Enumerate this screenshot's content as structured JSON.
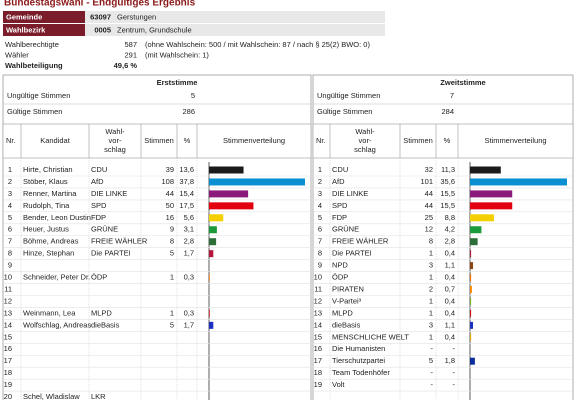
{
  "title": "Bundestagswahl - Endgültiges Ergebnis",
  "header": {
    "rows": [
      {
        "label": "Gemeinde",
        "code": "63097",
        "name": "Gerstungen"
      },
      {
        "label": "Wahlbezirk",
        "code": "0005",
        "name": "Zentrum, Grundschule"
      }
    ]
  },
  "summary": [
    {
      "label": "Wahlberechtigte",
      "value": "587",
      "note": "(ohne Wahlschein: 500 / mit Wahlschein: 87 / nach § 25(2) BWO: 0)"
    },
    {
      "label": "Wähler",
      "value": "291",
      "note": "(mit Wahlschein: 1)"
    },
    {
      "label": "Wahlbeteiligung",
      "value": "49,6 %"
    }
  ],
  "panels": [
    {
      "title": "Erststimme",
      "invalid_label": "Ungültige Stimmen",
      "invalid": "5",
      "valid_label": "Gültige Stimmen",
      "valid": "286",
      "columns": [
        [
          "Nr."
        ],
        [
          "Kandidat"
        ],
        [
          "Wahl-",
          "vor-",
          "schlag"
        ],
        [
          "Stimmen"
        ],
        [
          "%"
        ],
        [
          "Stimmenverteilung"
        ]
      ],
      "rows": [
        {
          "nr": 1,
          "name": "Hirte, Christian",
          "party": "CDU",
          "votes": 39,
          "pct": 13.6,
          "pct_label": "13,6",
          "color": "#1a1a1a"
        },
        {
          "nr": 2,
          "name": "Stöber, Klaus",
          "party": "AfD",
          "votes": 108,
          "pct": 37.8,
          "pct_label": "37,8",
          "color": "#0a8fd0"
        },
        {
          "nr": 3,
          "name": "Renner, Martina",
          "party": "DIE LINKE",
          "votes": 44,
          "pct": 15.4,
          "pct_label": "15,4",
          "color": "#8b1a7a"
        },
        {
          "nr": 4,
          "name": "Rudolph, Tina",
          "party": "SPD",
          "votes": 50,
          "pct": 17.5,
          "pct_label": "17,5",
          "color": "#e3000f"
        },
        {
          "nr": 5,
          "name": "Bender, Leon Dustin",
          "party": "FDP",
          "votes": 16,
          "pct": 5.6,
          "pct_label": "5,6",
          "color": "#f5d000"
        },
        {
          "nr": 6,
          "name": "Heuer, Justus",
          "party": "GRÜNE",
          "votes": 9,
          "pct": 3.1,
          "pct_label": "3,1",
          "color": "#1a9a3a"
        },
        {
          "nr": 7,
          "name": "Böhme, Andreas",
          "party": "FREIE WÄHLER",
          "votes": 8,
          "pct": 2.8,
          "pct_label": "2,8",
          "color": "#2d6e3a"
        },
        {
          "nr": 8,
          "name": "Hinze, Stephan",
          "party": "Die PARTEI",
          "votes": 5,
          "pct": 1.7,
          "pct_label": "1,7",
          "color": "#b5153a"
        },
        {
          "nr": 9
        },
        {
          "nr": 10,
          "name": "Schneider, Peter Dr.",
          "party": "ÖDP",
          "votes": 1,
          "pct": 0.3,
          "pct_label": "0,3",
          "color": "#f07000"
        },
        {
          "nr": 11
        },
        {
          "nr": 12
        },
        {
          "nr": 13,
          "name": "Weinmann, Lea",
          "party": "MLPD",
          "votes": 1,
          "pct": 0.3,
          "pct_label": "0,3",
          "color": "#d01010"
        },
        {
          "nr": 14,
          "name": "Wolfschlag, Andreas",
          "party": "dieBasis",
          "votes": 5,
          "pct": 1.7,
          "pct_label": "1,7",
          "color": "#1b30c0"
        },
        {
          "nr": 15
        },
        {
          "nr": 16
        },
        {
          "nr": 17
        },
        {
          "nr": 18
        },
        {
          "nr": 19
        },
        {
          "nr": 20,
          "name": "Schel, Wladislaw",
          "party": "LKR"
        }
      ]
    },
    {
      "title": "Zweitstimme",
      "invalid_label": "Ungültige Stimmen",
      "invalid": "7",
      "valid_label": "Gültige Stimmen",
      "valid": "284",
      "columns": [
        [
          "Nr."
        ],
        [
          "Wahl-",
          "vor-",
          "schlag"
        ],
        [
          "Stimmen"
        ],
        [
          "%"
        ],
        [
          "Stimmenverteilung"
        ]
      ],
      "rows": [
        {
          "nr": 1,
          "party": "CDU",
          "votes": 32,
          "pct": 11.3,
          "pct_label": "11,3",
          "color": "#1a1a1a"
        },
        {
          "nr": 2,
          "party": "AfD",
          "votes": 101,
          "pct": 35.6,
          "pct_label": "35,6",
          "color": "#0a8fd0"
        },
        {
          "nr": 3,
          "party": "DIE LINKE",
          "votes": 44,
          "pct": 15.5,
          "pct_label": "15,5",
          "color": "#8b1a7a"
        },
        {
          "nr": 4,
          "party": "SPD",
          "votes": 44,
          "pct": 15.5,
          "pct_label": "15,5",
          "color": "#e3000f"
        },
        {
          "nr": 5,
          "party": "FDP",
          "votes": 25,
          "pct": 8.8,
          "pct_label": "8,8",
          "color": "#f5d000"
        },
        {
          "nr": 6,
          "party": "GRÜNE",
          "votes": 12,
          "pct": 4.2,
          "pct_label": "4,2",
          "color": "#1a9a3a"
        },
        {
          "nr": 7,
          "party": "FREIE WÄHLER",
          "votes": 8,
          "pct": 2.8,
          "pct_label": "2,8",
          "color": "#2d6e3a"
        },
        {
          "nr": 8,
          "party": "Die PARTEI",
          "votes": 1,
          "pct": 0.4,
          "pct_label": "0,4",
          "color": "#b5153a"
        },
        {
          "nr": 9,
          "party": "NPD",
          "votes": 3,
          "pct": 1.1,
          "pct_label": "1,1",
          "color": "#8b4513"
        },
        {
          "nr": 10,
          "party": "ÖDP",
          "votes": 1,
          "pct": 0.4,
          "pct_label": "0,4",
          "color": "#f07000"
        },
        {
          "nr": 11,
          "party": "PIRATEN",
          "votes": 2,
          "pct": 0.7,
          "pct_label": "0,7",
          "color": "#ff8800"
        },
        {
          "nr": 12,
          "party": "V-Partei³",
          "votes": 1,
          "pct": 0.4,
          "pct_label": "0,4",
          "color": "#7ab51d"
        },
        {
          "nr": 13,
          "party": "MLPD",
          "votes": 1,
          "pct": 0.4,
          "pct_label": "0,4",
          "color": "#d01010"
        },
        {
          "nr": 14,
          "party": "dieBasis",
          "votes": 3,
          "pct": 1.1,
          "pct_label": "1,1",
          "color": "#1b30c0"
        },
        {
          "nr": 15,
          "party": "MENSCHLICHE WELT",
          "votes": 1,
          "pct": 0.4,
          "pct_label": "0,4",
          "color": "#e0a000"
        },
        {
          "nr": 16,
          "party": "Die Humanisten",
          "votes": "-",
          "pct_label": "-"
        },
        {
          "nr": 17,
          "party": "Tierschutzpartei",
          "votes": 5,
          "pct": 1.8,
          "pct_label": "1,8",
          "color": "#0b2e9c"
        },
        {
          "nr": 18,
          "party": "Team Todenhöfer",
          "votes": "-",
          "pct_label": "-"
        },
        {
          "nr": 19,
          "party": "Volt",
          "votes": "-",
          "pct_label": "-"
        }
      ]
    }
  ]
}
